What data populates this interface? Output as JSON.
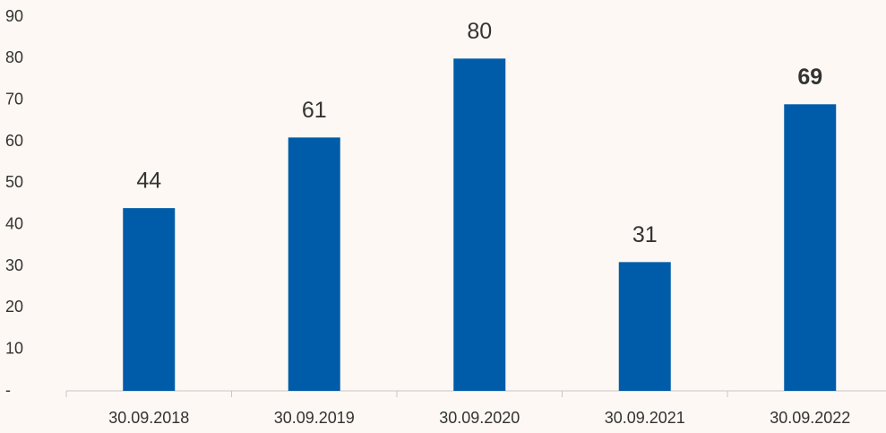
{
  "chart_data": {
    "type": "bar",
    "categories": [
      "30.09.2018",
      "30.09.2019",
      "30.09.2020",
      "30.09.2021",
      "30.09.2022"
    ],
    "values": [
      44,
      61,
      80,
      31,
      69
    ],
    "color": "#005ca9",
    "ylim": [
      0,
      90
    ],
    "yticks": [
      {
        "value": 0,
        "label": "-"
      },
      10,
      20,
      30,
      40,
      50,
      60,
      70,
      80,
      90
    ],
    "grid": false
  }
}
